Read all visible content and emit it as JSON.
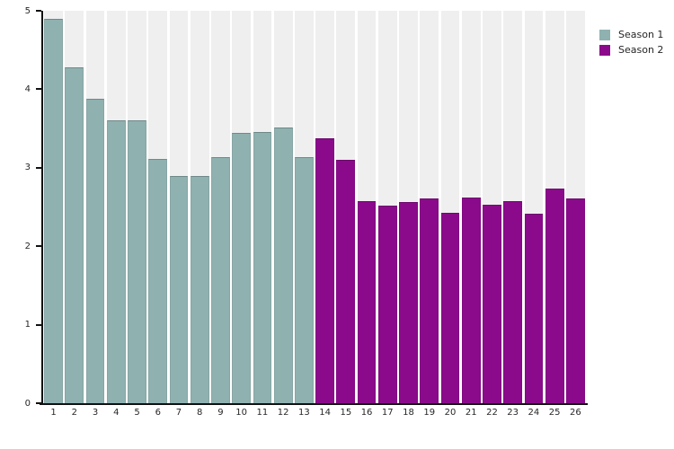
{
  "chart_data": {
    "type": "bar",
    "title": "",
    "xlabel": "",
    "ylabel": "",
    "ylim": [
      0,
      5
    ],
    "y_ticks": [
      0,
      1,
      2,
      3,
      4,
      5
    ],
    "grid": false,
    "background_bands": true,
    "legend_position": "outside-top-right",
    "categories": [
      "1",
      "2",
      "3",
      "4",
      "5",
      "6",
      "7",
      "8",
      "9",
      "10",
      "11",
      "12",
      "13",
      "14",
      "15",
      "16",
      "17",
      "18",
      "19",
      "20",
      "21",
      "22",
      "23",
      "24",
      "25",
      "26"
    ],
    "series": [
      {
        "name": "Season 1",
        "color": "#8fb1b0",
        "x": [
          1,
          2,
          3,
          4,
          5,
          6,
          7,
          8,
          9,
          10,
          11,
          12,
          13
        ],
        "values": [
          4.9,
          4.28,
          3.88,
          3.61,
          3.61,
          3.11,
          2.89,
          2.89,
          3.14,
          3.44,
          3.46,
          3.51,
          3.13
        ]
      },
      {
        "name": "Season 2",
        "color": "#8b0a8b",
        "x": [
          14,
          15,
          16,
          17,
          18,
          19,
          20,
          21,
          22,
          23,
          24,
          25,
          26
        ],
        "values": [
          3.37,
          3.1,
          2.58,
          2.52,
          2.56,
          2.61,
          2.43,
          2.62,
          2.53,
          2.57,
          2.42,
          2.74,
          2.61
        ]
      }
    ]
  },
  "colors": {
    "background": "#ffffff",
    "plot_band": "#efefef",
    "axis": "#111111",
    "text": "#262626",
    "season1": "#8fb1b0",
    "season2": "#8b0a8b"
  }
}
